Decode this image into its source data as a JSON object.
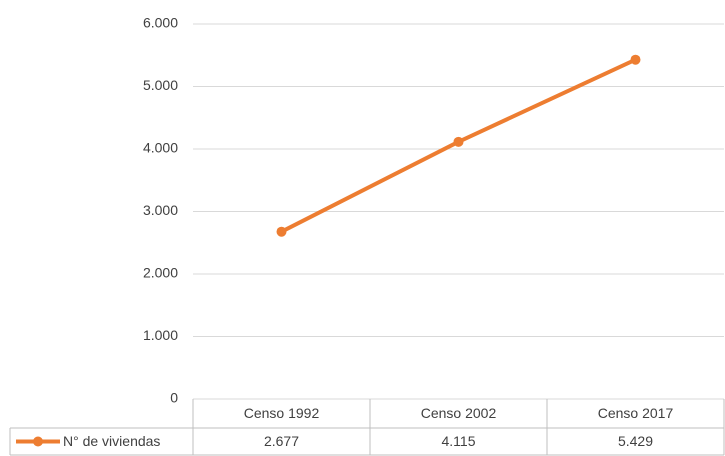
{
  "chart_data": {
    "type": "line",
    "categories": [
      "Censo 1992",
      "Censo 2002",
      "Censo 2017"
    ],
    "series": [
      {
        "name": "N° de viviendas",
        "color": "#ed7d31",
        "values": [
          2677,
          4115,
          5429
        ],
        "value_labels": [
          "2.677",
          "4.115",
          "5.429"
        ]
      }
    ],
    "ylim": [
      0,
      6000
    ],
    "yticks": [
      0,
      {
        "value": 1000,
        "label": "1.000"
      },
      {
        "value": 2000,
        "label": "2.000"
      },
      {
        "value": 3000,
        "label": "3.000"
      },
      {
        "value": 4000,
        "label": "4.000"
      },
      {
        "value": 5000,
        "label": "5.000"
      },
      {
        "value": 6000,
        "label": "6.000"
      }
    ],
    "grid": true
  }
}
